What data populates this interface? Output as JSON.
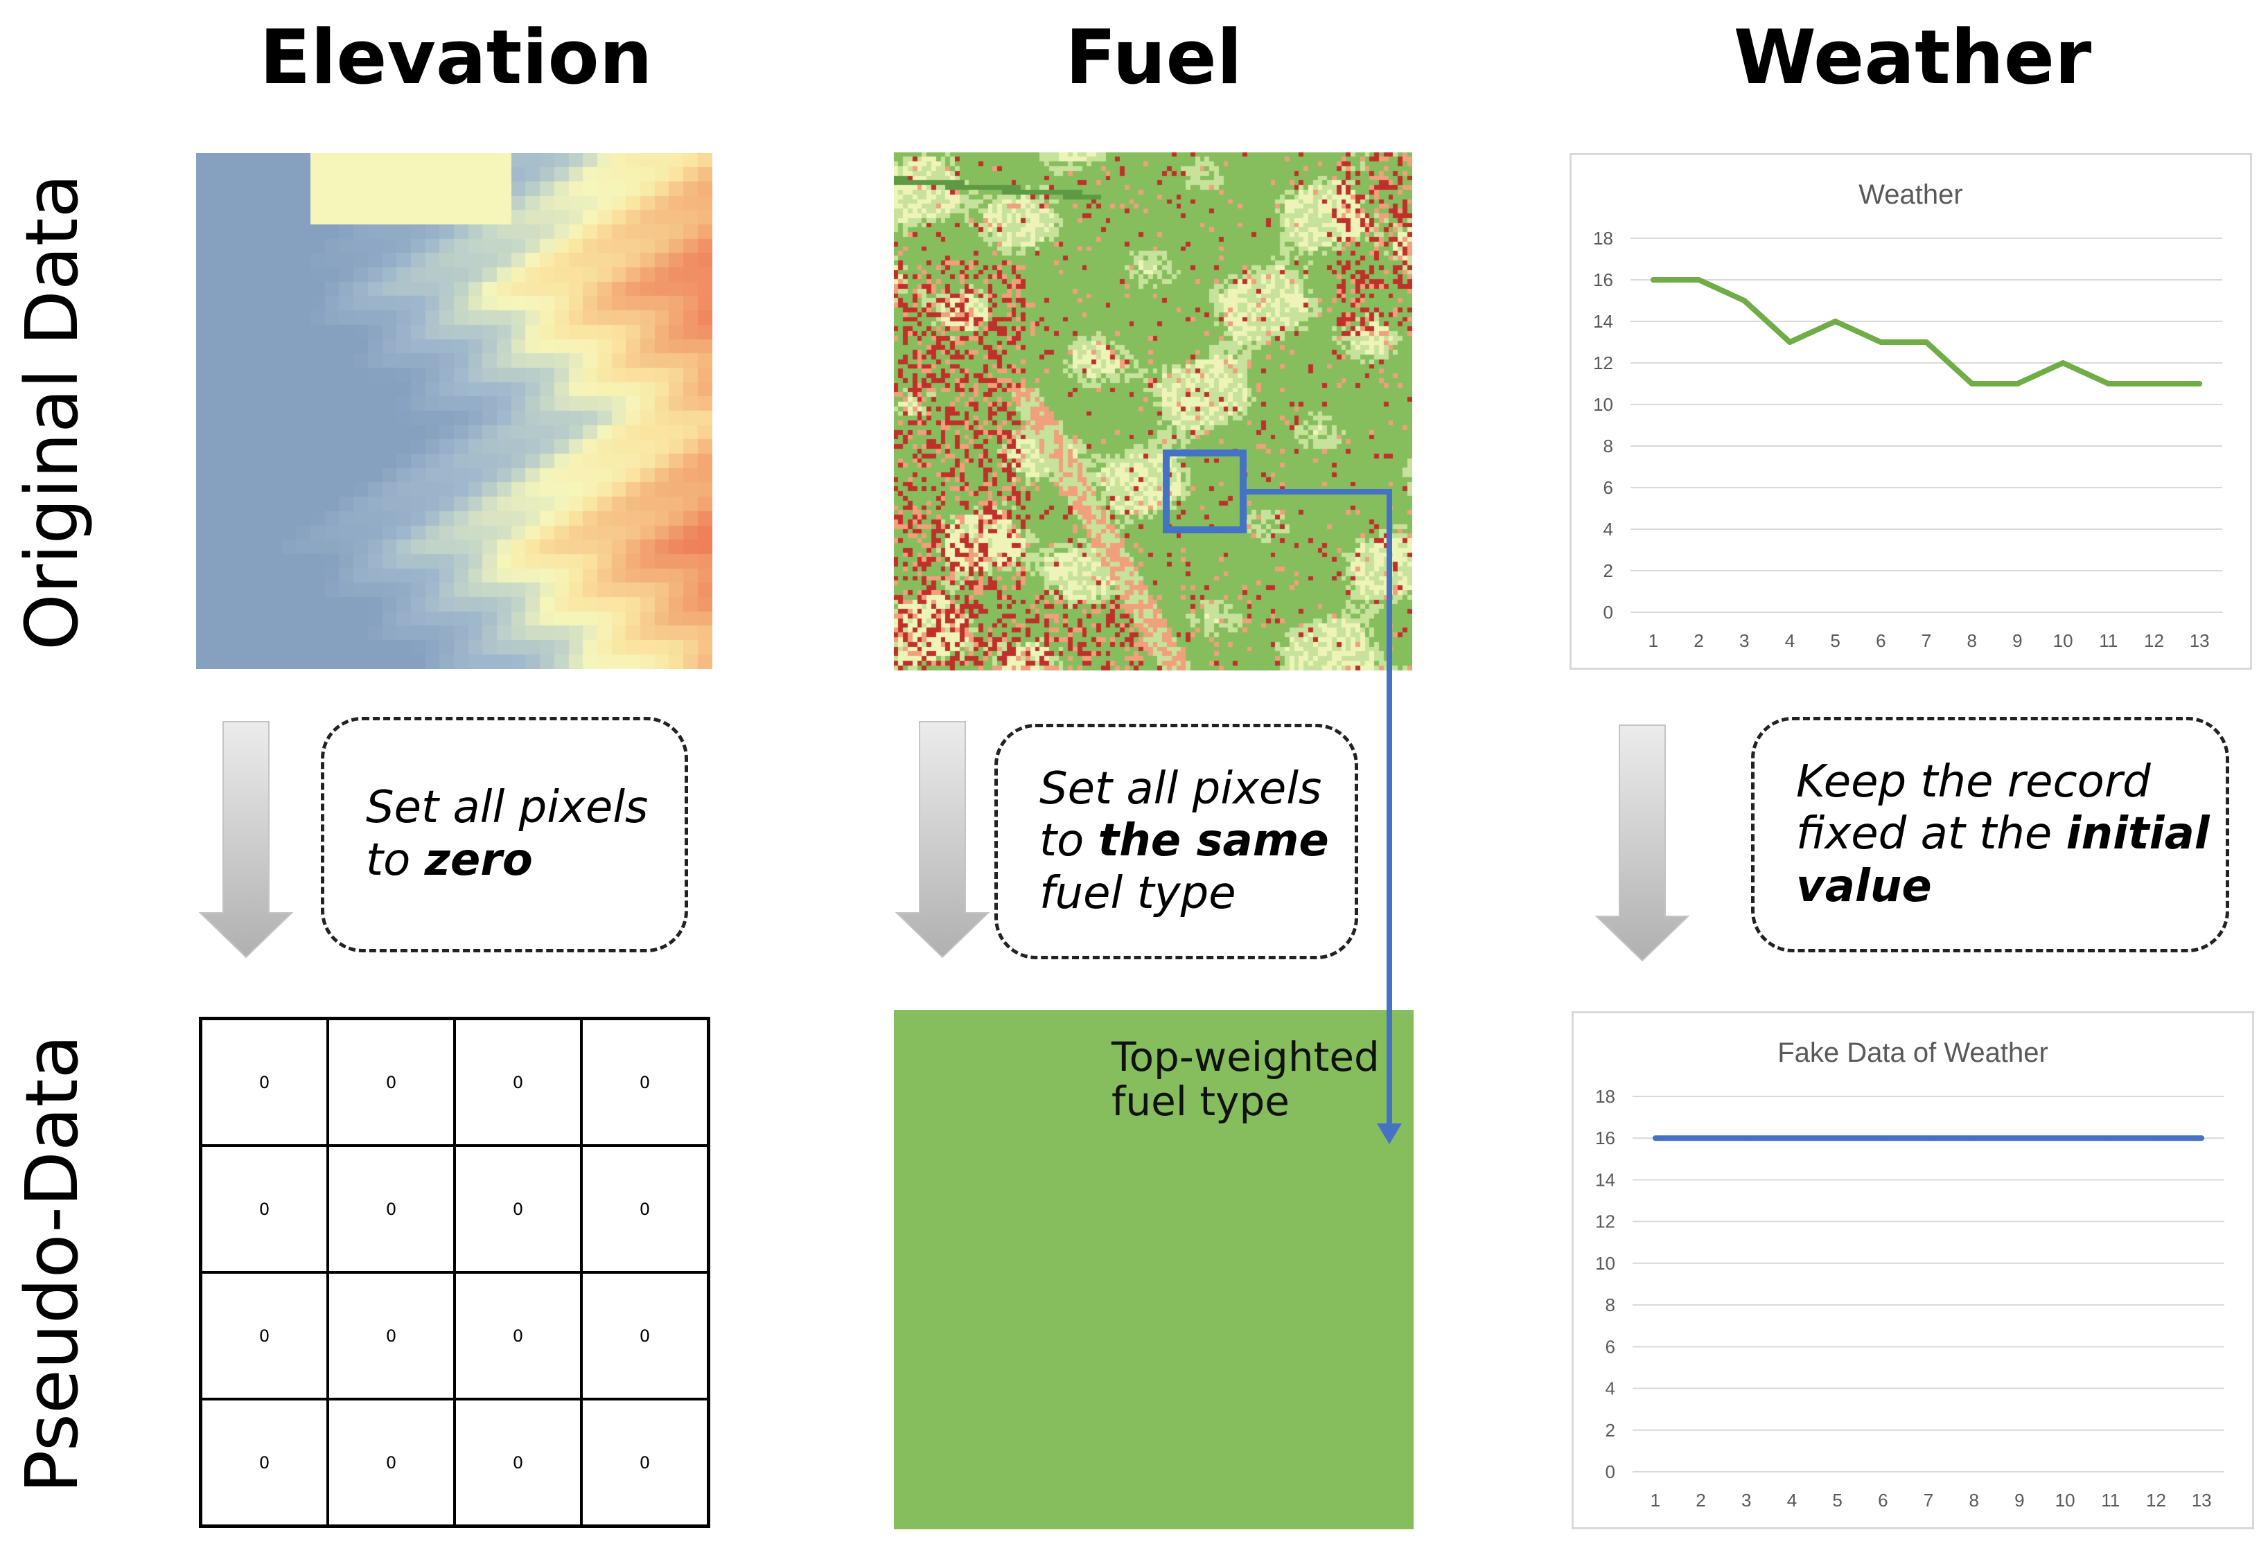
{
  "columns": {
    "elevation": "Elevation",
    "fuel": "Fuel",
    "weather": "Weather"
  },
  "rows": {
    "original": "Original Data",
    "pseudo": "Pseudo-Data"
  },
  "hints": {
    "elevation": {
      "prefix": "Set all pixels",
      "line2_prefix": "to ",
      "emph": "zero"
    },
    "fuel": {
      "line1": "Set all pixels",
      "line2_prefix": "to ",
      "emph": "the same",
      "line3": "fuel type"
    },
    "weather": {
      "line1": "Keep the record",
      "line2_prefix": "fixed at the ",
      "emph": "initial",
      "line3": "value"
    }
  },
  "fuel_callout": {
    "line1": "Top-weighted",
    "line2": "fuel type"
  },
  "zero_grid": {
    "cells": [
      "0",
      "0",
      "0",
      "0",
      "0",
      "0",
      "0",
      "0",
      "0",
      "0",
      "0",
      "0",
      "0",
      "0",
      "0",
      "0"
    ]
  },
  "colors": {
    "fuel_green": "#86be5e",
    "weather_line": "#70ad47",
    "fake_line": "#4472c4",
    "callout": "#4472c4",
    "arrow_light": "#e8e8e8",
    "arrow_dark": "#b3b3b3"
  },
  "chart_data": [
    {
      "type": "line",
      "title": "Weather",
      "categories": [
        "1",
        "2",
        "3",
        "4",
        "5",
        "6",
        "7",
        "8",
        "9",
        "10",
        "11",
        "12",
        "13"
      ],
      "values": [
        16,
        16,
        15,
        13,
        14,
        13,
        13,
        11,
        11,
        12,
        11,
        11,
        11
      ],
      "ylim": [
        0,
        18
      ],
      "yticks": [
        "0",
        "2",
        "4",
        "6",
        "8",
        "10",
        "12",
        "14",
        "16",
        "18"
      ],
      "grid": true,
      "xlabel": "",
      "ylabel": ""
    },
    {
      "type": "line",
      "title": "Fake Data of Weather",
      "categories": [
        "1",
        "2",
        "3",
        "4",
        "5",
        "6",
        "7",
        "8",
        "9",
        "10",
        "11",
        "12",
        "13"
      ],
      "values": [
        16,
        16,
        16,
        16,
        16,
        16,
        16,
        16,
        16,
        16,
        16,
        16,
        16
      ],
      "ylim": [
        0,
        18
      ],
      "yticks": [
        "0",
        "2",
        "4",
        "6",
        "8",
        "10",
        "12",
        "14",
        "16",
        "18"
      ],
      "grid": true,
      "xlabel": "",
      "ylabel": ""
    }
  ]
}
